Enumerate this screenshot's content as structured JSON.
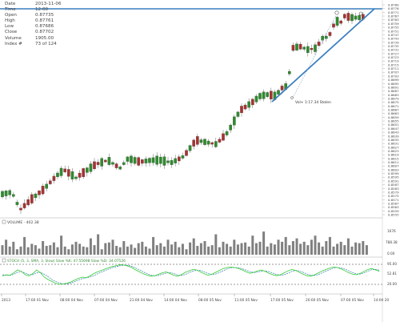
{
  "info_panel": {
    "rows": [
      {
        "label": "Date",
        "value": "2013-11-06"
      },
      {
        "label": "Time",
        "value": "12:00"
      },
      {
        "label": "Open",
        "value": "0.87735"
      },
      {
        "label": "High",
        "value": "0.87761"
      },
      {
        "label": "Low",
        "value": "0.87686"
      },
      {
        "label": "Close",
        "value": "0.87702"
      },
      {
        "label": "Volume",
        "value": "1905.00"
      },
      {
        "label": "Index #",
        "value": "73 of 124"
      }
    ]
  },
  "colors": {
    "up": "#2e8b2e",
    "down": "#a83232",
    "trendline": "#3a7fbf",
    "stoch_k": "#33cc33",
    "stoch_d": "#2e7fa8",
    "volume": "#808080"
  },
  "price_axis": {
    "labels": [
      "0.8780",
      "0.8776",
      "0.8771",
      "0.8767",
      "0.8763",
      "0.8759",
      "0.8755",
      "0.8751",
      "0.8747",
      "0.8743",
      "0.8739",
      "0.8735",
      "0.8731",
      "0.8727",
      "0.8723",
      "0.8719",
      "0.8715",
      "0.8711",
      "0.8707",
      "0.8703",
      "0.8699",
      "0.8695",
      "0.8691",
      "0.8687",
      "0.8683",
      "0.8679",
      "0.8675",
      "0.8671",
      "0.8667",
      "0.8663",
      "0.8659",
      "0.8655",
      "0.8651",
      "0.8647",
      "0.8643",
      "0.8639",
      "0.8635",
      "0.8631",
      "0.8627",
      "0.8623",
      "0.8619",
      "0.8615",
      "0.8611",
      "0.8607",
      "0.8603",
      "0.8599",
      "0.8595",
      "0.8591",
      "0.8587",
      "0.8583",
      "0.8579",
      "0.8575",
      "0.8571",
      "0.8567",
      "0.8563",
      "0.8559",
      "0.8555"
    ],
    "min": 0.8553,
    "max": 0.8781
  },
  "annotation": {
    "text": "Vol+ 1:17.34 Stolen"
  },
  "volume_panel": {
    "label": "VOLUME · 402.38",
    "axis": [
      "1676",
      "788.38",
      "0.00"
    ],
    "values": [
      70,
      110,
      60,
      95,
      40,
      60,
      130,
      55,
      80,
      70,
      45,
      100,
      65,
      70,
      90,
      55,
      140,
      60,
      40,
      75,
      95,
      80,
      60,
      55,
      120,
      70,
      150,
      40,
      85,
      90,
      110,
      65,
      55,
      100,
      60,
      75,
      50,
      85,
      95,
      60,
      45,
      130,
      70,
      85,
      60,
      110,
      75,
      95,
      55,
      80,
      40,
      90,
      120,
      65,
      85,
      100,
      60,
      70,
      150,
      55,
      95,
      80,
      60,
      110,
      75,
      85,
      90,
      60,
      140,
      85,
      95,
      170,
      60,
      85,
      75,
      110,
      95,
      130,
      70,
      100,
      120,
      80,
      95,
      70,
      110,
      140,
      90,
      60,
      100,
      130,
      60,
      80,
      95,
      70,
      120,
      60,
      90,
      85,
      100,
      70
    ]
  },
  "stoch_panel": {
    "label": "STOCH (5, 3, SMA, 3, Slow)  Slow %K: 47.55698  Slow %D: 34.07526",
    "axis": [
      "95.00",
      "52.81",
      "20.00"
    ],
    "k": [
      45,
      50,
      48,
      58,
      70,
      64,
      50,
      45,
      55,
      70,
      58,
      40,
      30,
      22,
      14,
      10,
      12,
      15,
      20,
      28,
      35,
      40,
      38,
      45,
      55,
      62,
      68,
      74,
      80,
      85,
      88,
      92,
      90,
      86,
      80,
      70,
      62,
      54,
      48,
      44,
      46,
      52,
      58,
      62,
      55,
      48,
      44,
      50,
      60,
      66,
      72,
      70,
      62,
      54,
      48,
      52,
      60,
      68,
      76,
      80,
      82,
      80,
      76,
      70,
      62,
      56,
      60,
      66,
      70,
      64,
      56,
      50,
      46,
      50,
      58,
      66,
      72,
      68,
      60,
      52,
      46,
      44,
      50,
      58,
      66,
      72,
      78,
      82,
      80,
      74,
      66,
      58,
      52,
      50,
      56,
      64,
      72,
      76,
      70,
      64
    ],
    "d": [
      50,
      48,
      47,
      52,
      60,
      63,
      57,
      50,
      50,
      58,
      60,
      52,
      42,
      30,
      22,
      15,
      12,
      12,
      15,
      21,
      28,
      34,
      37,
      41,
      46,
      54,
      61,
      68,
      74,
      80,
      84,
      88,
      90,
      89,
      85,
      78,
      70,
      62,
      54,
      48,
      46,
      47,
      52,
      57,
      59,
      55,
      49,
      47,
      51,
      58,
      65,
      69,
      68,
      62,
      55,
      51,
      53,
      59,
      67,
      74,
      79,
      80,
      79,
      75,
      69,
      63,
      59,
      61,
      65,
      66,
      63,
      57,
      51,
      48,
      50,
      56,
      64,
      68,
      66,
      60,
      53,
      48,
      47,
      51,
      58,
      65,
      72,
      78,
      80,
      78,
      73,
      66,
      59,
      53,
      53,
      58,
      65,
      71,
      72,
      69
    ]
  },
  "time_axis": {
    "labels": [
      "2013",
      "17:00 01 Nov",
      "08:00 04 Nov",
      "07:00 04 Nov",
      "21:00 04 Nov",
      "14:00 04 Nov",
      "08:00 05 Nov",
      "11:00 05 Nov",
      "17:00 05 Nov",
      "20:00 05 Nov",
      "07:00 05 Nov",
      "14:00 20"
    ]
  }
}
